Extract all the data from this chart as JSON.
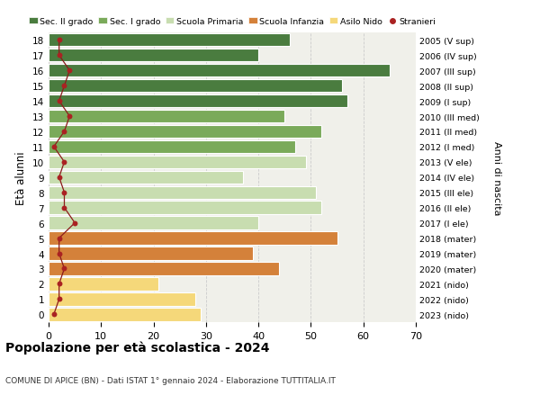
{
  "ages": [
    18,
    17,
    16,
    15,
    14,
    13,
    12,
    11,
    10,
    9,
    8,
    7,
    6,
    5,
    4,
    3,
    2,
    1,
    0
  ],
  "right_labels": [
    "2005 (V sup)",
    "2006 (IV sup)",
    "2007 (III sup)",
    "2008 (II sup)",
    "2009 (I sup)",
    "2010 (III med)",
    "2011 (II med)",
    "2012 (I med)",
    "2013 (V ele)",
    "2014 (IV ele)",
    "2015 (III ele)",
    "2016 (II ele)",
    "2017 (I ele)",
    "2018 (mater)",
    "2019 (mater)",
    "2020 (mater)",
    "2021 (nido)",
    "2022 (nido)",
    "2023 (nido)"
  ],
  "bar_values": [
    46,
    40,
    65,
    56,
    57,
    45,
    52,
    47,
    49,
    37,
    51,
    52,
    40,
    55,
    39,
    44,
    21,
    28,
    29
  ],
  "bar_colors": [
    "#4a7c3f",
    "#4a7c3f",
    "#4a7c3f",
    "#4a7c3f",
    "#4a7c3f",
    "#7aaa5a",
    "#7aaa5a",
    "#7aaa5a",
    "#c8ddb0",
    "#c8ddb0",
    "#c8ddb0",
    "#c8ddb0",
    "#c8ddb0",
    "#d4813a",
    "#d4813a",
    "#d4813a",
    "#f5d87a",
    "#f5d87a",
    "#f5d87a"
  ],
  "stranieri_values": [
    2,
    2,
    4,
    3,
    2,
    4,
    3,
    1,
    3,
    2,
    3,
    3,
    5,
    2,
    2,
    3,
    2,
    2,
    1
  ],
  "legend_labels": [
    "Sec. II grado",
    "Sec. I grado",
    "Scuola Primaria",
    "Scuola Infanzia",
    "Asilo Nido",
    "Stranieri"
  ],
  "legend_colors": [
    "#4a7c3f",
    "#7aaa5a",
    "#c8ddb0",
    "#d4813a",
    "#f5d87a",
    "#aa2222"
  ],
  "ylabel": "Età alunni",
  "right_ylabel": "Anni di nascita",
  "title": "Popolazione per età scolastica - 2024",
  "subtitle": "COMUNE DI APICE (BN) - Dati ISTAT 1° gennaio 2024 - Elaborazione TUTTITALIA.IT",
  "xlim": [
    0,
    70
  ],
  "background_color": "#ffffff",
  "bar_bg_color": "#f0f0ea"
}
